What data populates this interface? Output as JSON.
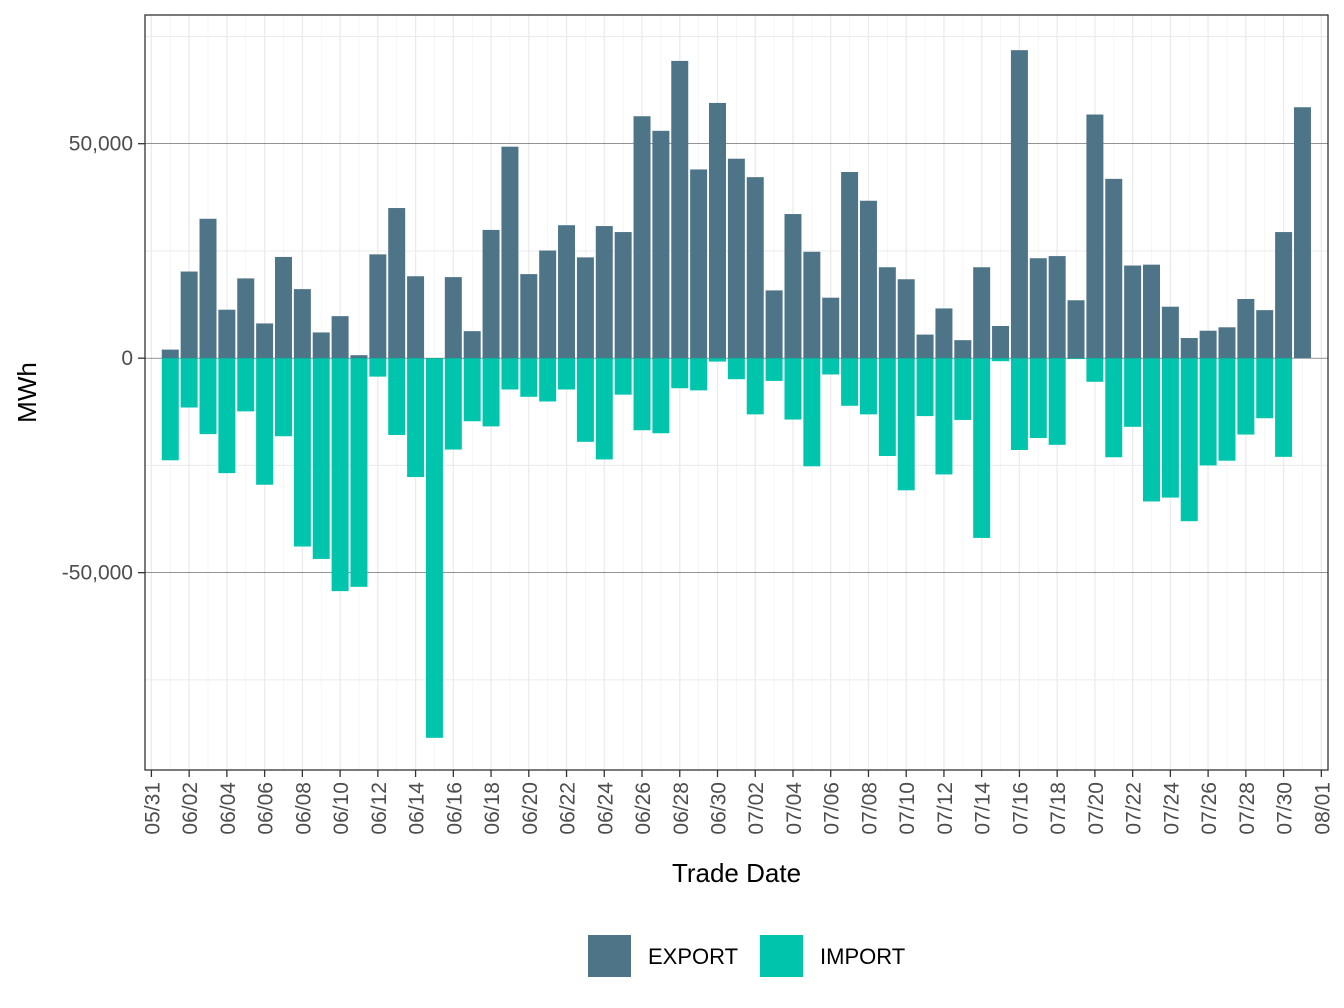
{
  "chart_data": {
    "type": "bar",
    "stacking": "diverging",
    "title": "",
    "xlabel": "Trade Date",
    "ylabel": "MWh",
    "ylim": [
      -96000,
      80000
    ],
    "yticks": [
      -50000,
      0,
      50000
    ],
    "ytick_labels": [
      "-50,000",
      "0",
      "50,000"
    ],
    "x_tick_labels": [
      "05/31",
      "06/02",
      "06/04",
      "06/06",
      "06/08",
      "06/10",
      "06/12",
      "06/14",
      "06/16",
      "06/18",
      "06/20",
      "06/22",
      "06/24",
      "06/26",
      "06/28",
      "06/30",
      "07/02",
      "07/04",
      "07/06",
      "07/08",
      "07/10",
      "07/12",
      "07/14",
      "07/16",
      "07/18",
      "07/20",
      "07/22",
      "07/24",
      "07/26",
      "07/28",
      "07/30",
      "08/01"
    ],
    "categories": [
      "06/01",
      "06/02",
      "06/03",
      "06/04",
      "06/05",
      "06/06",
      "06/07",
      "06/08",
      "06/09",
      "06/10",
      "06/11",
      "06/12",
      "06/13",
      "06/14",
      "06/15",
      "06/16",
      "06/17",
      "06/18",
      "06/19",
      "06/20",
      "06/21",
      "06/22",
      "06/23",
      "06/24",
      "06/25",
      "06/26",
      "06/27",
      "06/28",
      "06/29",
      "06/30",
      "07/01",
      "07/02",
      "07/03",
      "07/04",
      "07/05",
      "07/06",
      "07/07",
      "07/08",
      "07/09",
      "07/10",
      "07/11",
      "07/12",
      "07/13",
      "07/14",
      "07/15",
      "07/16",
      "07/17",
      "07/18",
      "07/19",
      "07/20",
      "07/21",
      "07/22",
      "07/23",
      "07/24",
      "07/25",
      "07/26",
      "07/27",
      "07/28",
      "07/29",
      "07/30",
      "07/31"
    ],
    "series": [
      {
        "name": "EXPORT",
        "color": "#4e7488",
        "values": [
          2000,
          20200,
          32500,
          11300,
          18600,
          8100,
          23600,
          16100,
          6000,
          9800,
          700,
          24200,
          35000,
          19100,
          0,
          18900,
          6300,
          29900,
          49300,
          19600,
          25100,
          31000,
          23500,
          30800,
          29400,
          56400,
          53000,
          69300,
          44000,
          59500,
          46500,
          42200,
          15800,
          33600,
          24800,
          14100,
          43400,
          36700,
          21200,
          18400,
          5500,
          11600,
          4200,
          21200,
          7500,
          71800,
          23300,
          23800,
          13500,
          56800,
          41800,
          21600,
          21800,
          12000,
          4700,
          6400,
          7200,
          13800,
          11200,
          29400,
          58500
        ]
      },
      {
        "name": "IMPORT",
        "color": "#00c5ad",
        "values": [
          -23800,
          -11500,
          -17700,
          -26800,
          -12400,
          -29500,
          -18200,
          -43900,
          -46800,
          -54300,
          -53300,
          -4300,
          -17900,
          -27700,
          -88500,
          -21300,
          -14700,
          -15900,
          -7300,
          -9000,
          -10100,
          -7300,
          -19500,
          -23600,
          -8500,
          -16800,
          -17500,
          -7000,
          -7500,
          -800,
          -4900,
          -13100,
          -5300,
          -14300,
          -25200,
          -3800,
          -11100,
          -13100,
          -22800,
          -30800,
          -13500,
          -27100,
          -14400,
          -41900,
          -700,
          -21400,
          -18600,
          -20200,
          -200,
          -5500,
          -23100,
          -16000,
          -33400,
          -32500,
          -38000,
          -25000,
          -23900,
          -17800,
          -14000,
          -23000,
          0
        ]
      }
    ],
    "legend": {
      "position": "bottom",
      "entries": [
        "EXPORT",
        "IMPORT"
      ]
    },
    "grid": true
  }
}
